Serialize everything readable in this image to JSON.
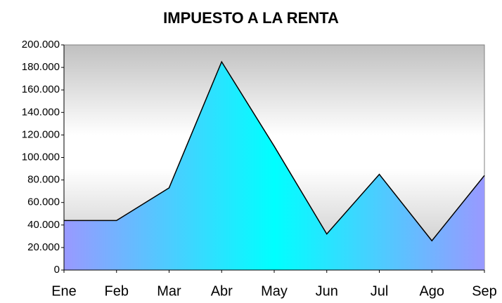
{
  "chart_data": {
    "type": "area",
    "title": "IMPUESTO A LA RENTA",
    "categories": [
      "Ene",
      "Feb",
      "Mar",
      "Abr",
      "May",
      "Jun",
      "Jul",
      "Ago",
      "Sep"
    ],
    "values": [
      44000,
      44000,
      73000,
      185000,
      110000,
      32000,
      85000,
      26000,
      84000
    ],
    "fill_gradient": [
      "#9999ff",
      "#00ffff",
      "#9999ff"
    ],
    "line_color": "#000000",
    "ylim": [
      0,
      200000
    ],
    "yticks": [
      0,
      {
        "value": 20000,
        "label": "20.000"
      },
      {
        "value": 40000,
        "label": "40.000"
      },
      {
        "value": 60000,
        "label": "60.000"
      },
      {
        "value": 80000,
        "label": "80.000"
      },
      {
        "value": 100000,
        "label": "100.000"
      },
      {
        "value": 120000,
        "label": "120.000"
      },
      {
        "value": 140000,
        "label": "140.000"
      },
      {
        "value": 160000,
        "label": "160.000"
      },
      {
        "value": 180000,
        "label": "180.000"
      },
      {
        "value": 200000,
        "label": "200.000"
      }
    ],
    "grid": false
  }
}
